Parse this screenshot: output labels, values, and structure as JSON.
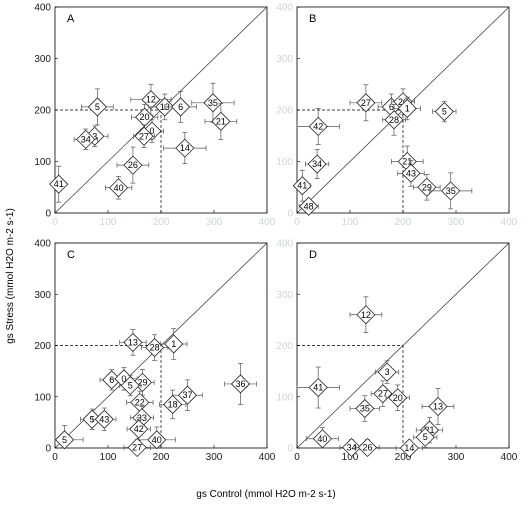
{
  "figure": {
    "xlabel": "gs Control (mmol H2O m-2 s-1)",
    "ylabel": "gs Stress (mmol H2O m-2 s-1)",
    "ticks": [
      "0",
      "100",
      "200",
      "300",
      "400"
    ]
  },
  "chart_data": [
    {
      "type": "scatter",
      "panel": "A",
      "xlim": [
        0,
        400
      ],
      "ylim": [
        0,
        400
      ],
      "reference": {
        "one_to_one": true,
        "dashed_x": 200,
        "dashed_y": 200
      },
      "points": [
        {
          "label": "5",
          "x": 80,
          "y": 206,
          "xerr": 30,
          "yerr": 35
        },
        {
          "label": "3",
          "x": 75,
          "y": 149,
          "xerr": 25,
          "yerr": 20
        },
        {
          "label": "34",
          "x": 58,
          "y": 143,
          "xerr": 22,
          "yerr": 20
        },
        {
          "label": "41",
          "x": 7,
          "y": 56,
          "xerr": 10,
          "yerr": 35
        },
        {
          "label": "12",
          "x": 181,
          "y": 220,
          "xerr": 38,
          "yerr": 30
        },
        {
          "label": "13",
          "x": 207,
          "y": 206,
          "xerr": 30,
          "yerr": 25
        },
        {
          "label": "6",
          "x": 237,
          "y": 206,
          "xerr": 30,
          "yerr": 30
        },
        {
          "label": "35",
          "x": 298,
          "y": 214,
          "xerr": 40,
          "yerr": 38
        },
        {
          "label": "20",
          "x": 169,
          "y": 186,
          "xerr": 25,
          "yerr": 25
        },
        {
          "label": "0",
          "x": 183,
          "y": 159,
          "xerr": 22,
          "yerr": 22
        },
        {
          "label": "27",
          "x": 168,
          "y": 149,
          "xerr": 20,
          "yerr": 22
        },
        {
          "label": "21",
          "x": 313,
          "y": 178,
          "xerr": 30,
          "yerr": 35
        },
        {
          "label": "26",
          "x": 147,
          "y": 93,
          "xerr": 30,
          "yerr": 35
        },
        {
          "label": "40",
          "x": 120,
          "y": 49,
          "xerr": 25,
          "yerr": 22
        },
        {
          "label": "14",
          "x": 245,
          "y": 126,
          "xerr": 40,
          "yerr": 30
        }
      ]
    },
    {
      "type": "scatter",
      "panel": "B",
      "xlim": [
        0,
        400
      ],
      "ylim": [
        0,
        400
      ],
      "reference": {
        "one_to_one": true,
        "dashed_x": 200,
        "dashed_y": 200
      },
      "points": [
        {
          "label": "27",
          "x": 130,
          "y": 214,
          "xerr": 30,
          "yerr": 35
        },
        {
          "label": "6",
          "x": 178,
          "y": 206,
          "xerr": 25,
          "yerr": 25
        },
        {
          "label": "20",
          "x": 200,
          "y": 216,
          "xerr": 22,
          "yerr": 25
        },
        {
          "label": "1",
          "x": 208,
          "y": 203,
          "xerr": 25,
          "yerr": 22
        },
        {
          "label": "28",
          "x": 183,
          "y": 181,
          "xerr": 22,
          "yerr": 30
        },
        {
          "label": "5",
          "x": 278,
          "y": 197,
          "xerr": 22,
          "yerr": 20
        },
        {
          "label": "42",
          "x": 40,
          "y": 168,
          "xerr": 40,
          "yerr": 35
        },
        {
          "label": "34",
          "x": 38,
          "y": 95,
          "xerr": 22,
          "yerr": 28
        },
        {
          "label": "41",
          "x": 10,
          "y": 53,
          "xerr": 15,
          "yerr": 30
        },
        {
          "label": "48",
          "x": 22,
          "y": 13,
          "xerr": 18,
          "yerr": 10
        },
        {
          "label": "21",
          "x": 208,
          "y": 100,
          "xerr": 30,
          "yerr": 30
        },
        {
          "label": "43",
          "x": 215,
          "y": 77,
          "xerr": 25,
          "yerr": 25
        },
        {
          "label": "29",
          "x": 245,
          "y": 50,
          "xerr": 25,
          "yerr": 25
        },
        {
          "label": "35",
          "x": 290,
          "y": 43,
          "xerr": 40,
          "yerr": 35
        }
      ]
    },
    {
      "type": "scatter",
      "panel": "C",
      "xlim": [
        0,
        400
      ],
      "ylim": [
        0,
        400
      ],
      "reference": {
        "one_to_one": true,
        "dashed_x": 200,
        "dashed_y": 200
      },
      "points": [
        {
          "label": "13",
          "x": 147,
          "y": 206,
          "xerr": 25,
          "yerr": 25
        },
        {
          "label": "28",
          "x": 188,
          "y": 196,
          "xerr": 25,
          "yerr": 25
        },
        {
          "label": "1",
          "x": 224,
          "y": 203,
          "xerr": 25,
          "yerr": 30
        },
        {
          "label": "6",
          "x": 107,
          "y": 133,
          "xerr": 22,
          "yerr": 20
        },
        {
          "label": "0",
          "x": 130,
          "y": 135,
          "xerr": 25,
          "yerr": 22
        },
        {
          "label": "29",
          "x": 165,
          "y": 128,
          "xerr": 22,
          "yerr": 25
        },
        {
          "label": "5",
          "x": 142,
          "y": 122,
          "xerr": 20,
          "yerr": 20
        },
        {
          "label": "36",
          "x": 350,
          "y": 125,
          "xerr": 30,
          "yerr": 40
        },
        {
          "label": "37",
          "x": 250,
          "y": 103,
          "xerr": 28,
          "yerr": 30
        },
        {
          "label": "18",
          "x": 222,
          "y": 85,
          "xerr": 25,
          "yerr": 28
        },
        {
          "label": "22",
          "x": 160,
          "y": 89,
          "xerr": 25,
          "yerr": 22
        },
        {
          "label": "33",
          "x": 164,
          "y": 59,
          "xerr": 22,
          "yerr": 22
        },
        {
          "label": "5",
          "x": 70,
          "y": 56,
          "xerr": 22,
          "yerr": 20
        },
        {
          "label": "43",
          "x": 93,
          "y": 56,
          "xerr": 22,
          "yerr": 22
        },
        {
          "label": "42",
          "x": 158,
          "y": 37,
          "xerr": 22,
          "yerr": 22
        },
        {
          "label": "40",
          "x": 192,
          "y": 16,
          "xerr": 35,
          "yerr": 25
        },
        {
          "label": "27",
          "x": 155,
          "y": 1,
          "xerr": 25,
          "yerr": 15
        },
        {
          "label": "5",
          "x": 18,
          "y": 16,
          "xerr": 35,
          "yerr": 28
        }
      ]
    },
    {
      "type": "scatter",
      "panel": "D",
      "xlim": [
        0,
        400
      ],
      "ylim": [
        0,
        400
      ],
      "reference": {
        "one_to_one": true,
        "dashed_x": 200,
        "dashed_y": 200
      },
      "points": [
        {
          "label": "12",
          "x": 130,
          "y": 260,
          "xerr": 30,
          "yerr": 35
        },
        {
          "label": "41",
          "x": 40,
          "y": 118,
          "xerr": 40,
          "yerr": 40
        },
        {
          "label": "3",
          "x": 170,
          "y": 148,
          "xerr": 22,
          "yerr": 22
        },
        {
          "label": "27",
          "x": 162,
          "y": 106,
          "xerr": 22,
          "yerr": 25
        },
        {
          "label": "20",
          "x": 190,
          "y": 98,
          "xerr": 22,
          "yerr": 25
        },
        {
          "label": "35",
          "x": 128,
          "y": 77,
          "xerr": 28,
          "yerr": 25
        },
        {
          "label": "13",
          "x": 266,
          "y": 81,
          "xerr": 30,
          "yerr": 35
        },
        {
          "label": "21",
          "x": 250,
          "y": 35,
          "xerr": 25,
          "yerr": 25
        },
        {
          "label": "5",
          "x": 242,
          "y": 21,
          "xerr": 22,
          "yerr": 20
        },
        {
          "label": "14",
          "x": 212,
          "y": 0,
          "xerr": 25,
          "yerr": 12
        },
        {
          "label": "40",
          "x": 48,
          "y": 18,
          "xerr": 30,
          "yerr": 22
        },
        {
          "label": "34",
          "x": 103,
          "y": 1,
          "xerr": 22,
          "yerr": 15
        },
        {
          "label": "26",
          "x": 133,
          "y": 1,
          "xerr": 22,
          "yerr": 15
        }
      ]
    }
  ]
}
